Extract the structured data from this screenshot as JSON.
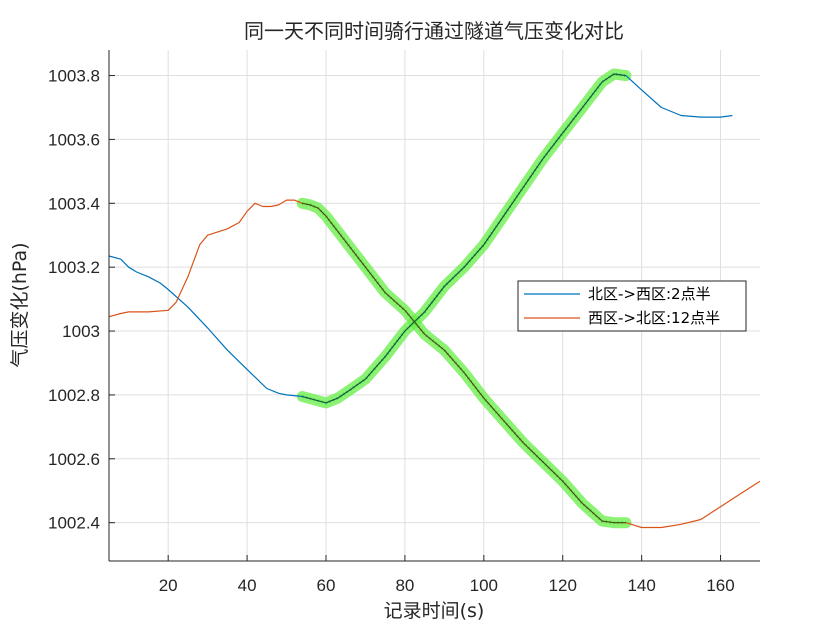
{
  "chart_data": {
    "type": "line",
    "title": "同一天不同时间骑行通过隧道气压变化对比",
    "xlabel": "记录时间(s)",
    "ylabel": "气压变化(hPa)",
    "xlim": [
      5,
      170
    ],
    "ylim": [
      1002.28,
      1003.88
    ],
    "xticks": [
      20,
      40,
      60,
      80,
      100,
      120,
      140,
      160
    ],
    "yticks": [
      1002.4,
      1002.6,
      1002.8,
      1003,
      1003.2,
      1003.4,
      1003.6,
      1003.8
    ],
    "ytick_labels": [
      "1002.4",
      "1002.6",
      "1002.8",
      "1003",
      "1003.2",
      "1003.4",
      "1003.6",
      "1003.8"
    ],
    "grid": true,
    "legend": {
      "placement": "right",
      "entries": [
        "北区->西区:2点半",
        "西区->北区:12点半"
      ]
    },
    "highlight_color": "#66ee44",
    "series": [
      {
        "name": "北区->西区:2点半",
        "color": "#0072BD",
        "x": [
          5,
          8,
          10,
          12,
          15,
          18,
          20,
          25,
          30,
          35,
          40,
          45,
          48,
          50,
          54,
          57,
          60,
          63,
          66,
          70,
          75,
          80,
          85,
          90,
          95,
          100,
          105,
          110,
          115,
          120,
          125,
          130,
          133,
          136,
          140,
          145,
          150,
          155,
          160,
          163
        ],
        "y": [
          1003.235,
          1003.225,
          1003.2,
          1003.185,
          1003.17,
          1003.15,
          1003.13,
          1003.075,
          1003.01,
          1002.94,
          1002.88,
          1002.82,
          1002.805,
          1002.8,
          1002.795,
          1002.785,
          1002.775,
          1002.79,
          1002.815,
          1002.85,
          1002.92,
          1003.0,
          1003.06,
          1003.14,
          1003.2,
          1003.27,
          1003.36,
          1003.45,
          1003.54,
          1003.62,
          1003.7,
          1003.78,
          1003.805,
          1003.8,
          1003.755,
          1003.7,
          1003.675,
          1003.67,
          1003.67,
          1003.675
        ],
        "highlight_range": [
          54,
          136
        ]
      },
      {
        "name": "西区->北区:12点半",
        "color": "#D95319",
        "x": [
          5,
          8,
          10,
          15,
          20,
          22,
          25,
          28,
          30,
          35,
          38,
          40,
          42,
          44,
          46,
          48,
          50,
          52,
          54,
          56,
          58,
          60,
          65,
          70,
          75,
          80,
          85,
          90,
          95,
          100,
          105,
          110,
          115,
          120,
          125,
          130,
          133,
          136,
          140,
          145,
          150,
          155,
          160,
          165,
          170
        ],
        "y": [
          1003.045,
          1003.055,
          1003.06,
          1003.06,
          1003.065,
          1003.09,
          1003.17,
          1003.27,
          1003.3,
          1003.32,
          1003.34,
          1003.375,
          1003.4,
          1003.39,
          1003.39,
          1003.395,
          1003.41,
          1003.41,
          1003.4,
          1003.395,
          1003.385,
          1003.36,
          1003.28,
          1003.2,
          1003.12,
          1003.065,
          1002.99,
          1002.94,
          1002.87,
          1002.79,
          1002.72,
          1002.65,
          1002.59,
          1002.53,
          1002.46,
          1002.405,
          1002.4,
          1002.4,
          1002.385,
          1002.385,
          1002.395,
          1002.41,
          1002.45,
          1002.49,
          1002.53
        ],
        "highlight_range": [
          54,
          136
        ]
      }
    ]
  }
}
